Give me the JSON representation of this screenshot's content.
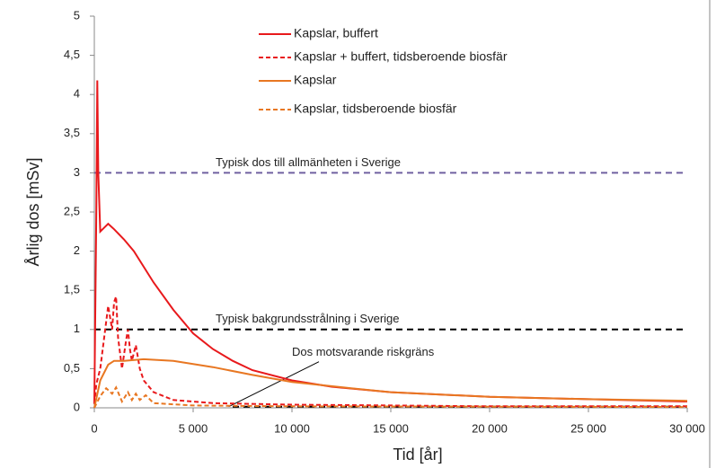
{
  "chart_data": {
    "type": "line",
    "xlabel": "Tid [år]",
    "ylabel": "Årlig dos [mSv]",
    "xlim": [
      0,
      30000
    ],
    "xticks": [
      0,
      {
        "value": 5000,
        "label": "5 000"
      },
      {
        "value": 10000,
        "label": "10 000"
      },
      {
        "value": 15000,
        "label": "15 000"
      },
      {
        "value": 20000,
        "label": "20 000"
      },
      {
        "value": 25000,
        "label": "25 000"
      },
      {
        "value": 30000,
        "label": "30 000"
      }
    ],
    "ylim": [
      0,
      5
    ],
    "yticks": [
      0,
      {
        "value": 0.5,
        "label": "0,5"
      },
      1,
      {
        "value": 1.5,
        "label": "1,5"
      },
      2,
      {
        "value": 2.5,
        "label": "2,5"
      },
      3,
      {
        "value": 3.5,
        "label": "3,5"
      },
      4,
      {
        "value": 4.5,
        "label": "4,5"
      },
      5
    ],
    "grid": false,
    "series": [
      {
        "name": "Kapslar, buffert",
        "color": "#e8191c",
        "dash": "solid",
        "x": [
          0,
          100,
          150,
          200,
          300,
          500,
          700,
          1000,
          1500,
          2000,
          3000,
          4000,
          5000,
          6000,
          7000,
          8000,
          10000,
          12000,
          15000,
          20000,
          25000,
          30000
        ],
        "values": [
          0.05,
          2.5,
          4.18,
          3.0,
          2.25,
          2.3,
          2.35,
          2.28,
          2.15,
          2.0,
          1.6,
          1.25,
          0.95,
          0.75,
          0.6,
          0.48,
          0.35,
          0.27,
          0.2,
          0.14,
          0.11,
          0.08
        ]
      },
      {
        "name": "Kapslar + buffert, tidsberoende biosfär",
        "color": "#e8191c",
        "dash": "dashed",
        "x": [
          0,
          100,
          300,
          500,
          700,
          900,
          1000,
          1100,
          1200,
          1400,
          1600,
          1700,
          1800,
          1900,
          2100,
          2300,
          2500,
          3000,
          4000,
          6000,
          10000,
          15000,
          20000,
          30000
        ],
        "values": [
          0.05,
          0.3,
          0.5,
          0.9,
          1.3,
          1.0,
          1.35,
          1.42,
          0.9,
          0.5,
          0.85,
          1.0,
          0.75,
          0.6,
          0.8,
          0.5,
          0.35,
          0.2,
          0.1,
          0.06,
          0.04,
          0.03,
          0.02,
          0.02
        ]
      },
      {
        "name": "Kapslar",
        "color": "#e87722",
        "dash": "solid",
        "x": [
          0,
          300,
          700,
          1000,
          1500,
          2500,
          4000,
          6000,
          8000,
          10000,
          13000,
          15000,
          20000,
          25000,
          30000
        ],
        "values": [
          0.0,
          0.35,
          0.55,
          0.6,
          0.6,
          0.62,
          0.6,
          0.52,
          0.42,
          0.33,
          0.25,
          0.2,
          0.14,
          0.11,
          0.09
        ]
      },
      {
        "name": "Kapslar, tidsberoende biosfär",
        "color": "#e87722",
        "dash": "dashed",
        "x": [
          0,
          300,
          600,
          900,
          1100,
          1400,
          1700,
          1900,
          2100,
          2300,
          2600,
          3000,
          5000,
          10000,
          30000
        ],
        "values": [
          0.0,
          0.15,
          0.25,
          0.18,
          0.26,
          0.08,
          0.2,
          0.1,
          0.18,
          0.1,
          0.16,
          0.06,
          0.03,
          0.02,
          0.01
        ]
      }
    ],
    "reference_lines": [
      {
        "value": 3,
        "label": "Typisk dos till allmänheten i Sverige",
        "color": "#7060a0"
      },
      {
        "value": 1,
        "label": "Typisk bakgrundsstrålning i Sverige",
        "color": "#000000"
      },
      {
        "value": 0.015,
        "label": "Dos motsvarande riskgräns",
        "color": "#000000"
      }
    ]
  }
}
